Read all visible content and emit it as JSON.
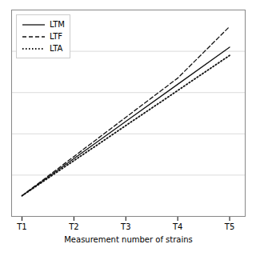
{
  "chart_data": {
    "type": "line",
    "xlabel": "Measurement number of strains",
    "x": [
      1,
      2,
      3,
      4,
      5
    ],
    "xticks": [
      {
        "value": 1,
        "label": "T1"
      },
      {
        "value": 2,
        "label": "T2"
      },
      {
        "value": 3,
        "label": "T3"
      },
      {
        "value": 4,
        "label": "T4"
      },
      {
        "value": 5,
        "label": "T5"
      }
    ],
    "xlim": [
      0.8,
      5.3
    ],
    "ylim": [
      0,
      100
    ],
    "yticks": [
      0,
      20,
      40,
      60,
      80,
      100
    ],
    "grid": "y",
    "tick_labels": "x",
    "legend": "upper left",
    "series": [
      {
        "name": "LTM",
        "color": "#111111",
        "line_style": "solid",
        "values": [
          10,
          28,
          46,
          64,
          82
        ]
      },
      {
        "name": "LTF",
        "color": "#111111",
        "line_style": "dashed",
        "values": [
          10,
          29,
          48,
          67,
          92
        ]
      },
      {
        "name": "LTA",
        "color": "#111111",
        "line_style": "dotted",
        "values": [
          10,
          27,
          44,
          61,
          78
        ]
      }
    ]
  }
}
